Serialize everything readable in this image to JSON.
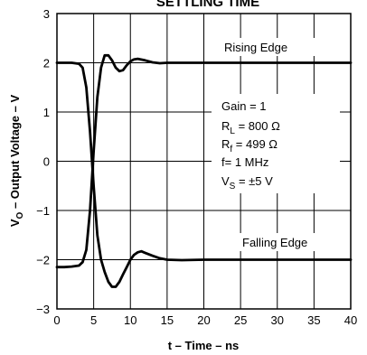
{
  "chart_data": {
    "type": "line",
    "title": "SETTLING TIME",
    "xlabel": "t – Time – ns",
    "ylabel": "V",
    "ylabel_sub": "O",
    "ylabel_rest": " – Output Voltage – V",
    "xlim": [
      0,
      40
    ],
    "ylim": [
      -3,
      3
    ],
    "xticks": [
      0,
      5,
      10,
      15,
      20,
      25,
      30,
      35,
      40
    ],
    "yticks": [
      -3,
      -2,
      -1,
      0,
      1,
      2,
      3
    ],
    "grid": true,
    "series": [
      {
        "name": "Rising Edge",
        "x": [
          0,
          1,
          2,
          3,
          3.5,
          4,
          4.5,
          5,
          5.5,
          6,
          6.5,
          7,
          7.5,
          8,
          8.5,
          9,
          9.5,
          10,
          10.5,
          11,
          11.5,
          12,
          13,
          14,
          15,
          17,
          20,
          25,
          30,
          35,
          40
        ],
        "y": [
          2.0,
          2.0,
          2.0,
          1.98,
          1.9,
          1.5,
          0.6,
          -0.5,
          -1.5,
          -2.0,
          -2.25,
          -2.45,
          -2.55,
          -2.55,
          -2.45,
          -2.3,
          -2.15,
          -2.0,
          -1.9,
          -1.85,
          -1.83,
          -1.86,
          -1.92,
          -1.97,
          -2.0,
          -2.01,
          -2.0,
          -2.0,
          -2.0,
          -2.0,
          -2.0
        ]
      },
      {
        "name": "Falling Edge",
        "x": [
          0,
          1,
          2,
          3,
          3.5,
          4,
          4.5,
          5,
          5.5,
          6,
          6.5,
          7,
          7.5,
          8,
          8.5,
          9,
          9.5,
          10,
          10.5,
          11,
          12,
          13,
          14,
          15,
          17,
          20,
          25,
          30,
          35,
          40
        ],
        "y": [
          -2.15,
          -2.15,
          -2.14,
          -2.12,
          -2.05,
          -1.8,
          -1.0,
          0.2,
          1.3,
          1.9,
          2.15,
          2.15,
          2.05,
          1.9,
          1.83,
          1.85,
          1.95,
          2.03,
          2.07,
          2.08,
          2.05,
          2.01,
          1.99,
          2.0,
          2.0,
          2.0,
          2.0,
          2.0,
          2.0,
          2.0
        ]
      }
    ],
    "annotations": {
      "rising_label": "Rising Edge",
      "falling_label": "Falling Edge",
      "gain": "Gain = 1",
      "rl_main": "R",
      "rl_sub": "L",
      "rl_value": " = 800 Ω",
      "rf_main": "R",
      "rf_sub": "f",
      "rf_value": " = 499 Ω",
      "freq": "f= 1 MHz",
      "vs_main": "V",
      "vs_sub": "S",
      "vs_value": " = ±5 V"
    }
  }
}
